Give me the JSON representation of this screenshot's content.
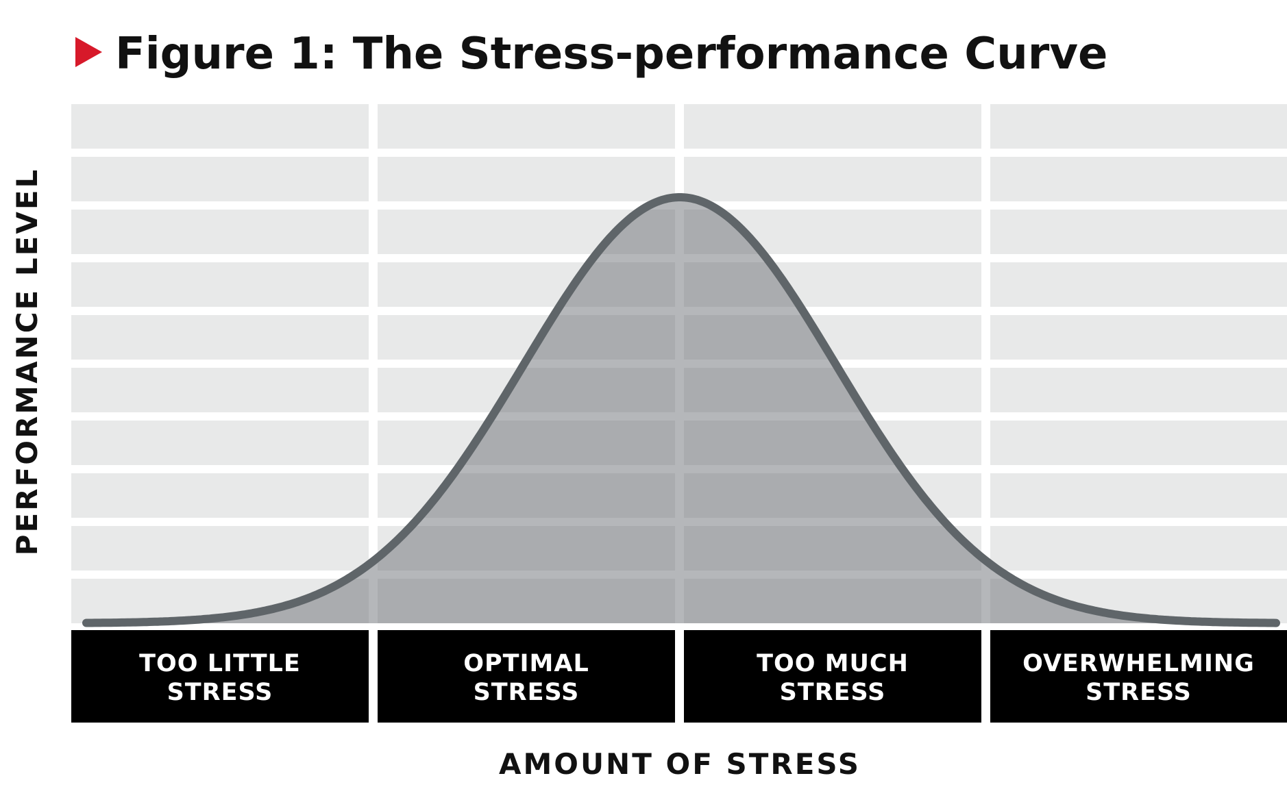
{
  "title": "Figure 1: The Stress-performance Curve",
  "y_axis_label": "PERFORMANCE LEVEL",
  "x_axis_label": "AMOUNT OF STRESS",
  "zones": [
    {
      "lines": [
        "TOO LITTLE",
        "STRESS"
      ]
    },
    {
      "lines": [
        "OPTIMAL",
        "STRESS"
      ]
    },
    {
      "lines": [
        "TOO MUCH",
        "STRESS"
      ]
    },
    {
      "lines": [
        "OVERWHELMING",
        "STRESS"
      ]
    }
  ]
}
